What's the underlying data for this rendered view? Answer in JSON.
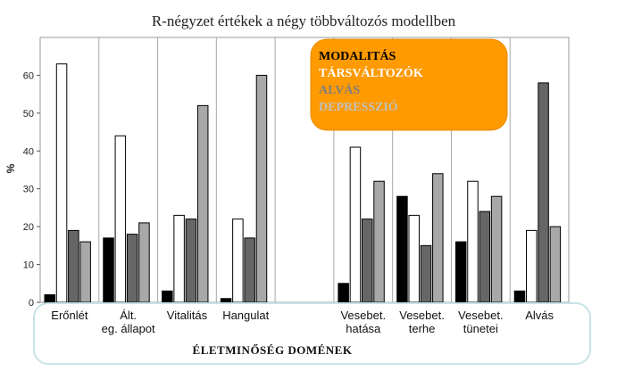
{
  "chart_data": {
    "type": "bar",
    "title": "R-négyzet értékek a négy többváltozós modellben",
    "xlabel": "ÉLETMINŐSÉG DOMÉNEK",
    "ylabel": "%",
    "ylim": [
      0,
      70
    ],
    "yticks": [
      0,
      10,
      20,
      30,
      40,
      50,
      60
    ],
    "grid": true,
    "legend_position": "top-right",
    "categories": [
      [
        "Erőnlét"
      ],
      [
        "Ált.",
        "eg. állapot"
      ],
      [
        "Vitalitás"
      ],
      [
        "Hangulat"
      ],
      [
        ""
      ],
      [
        "Vesebet.",
        "hatása"
      ],
      [
        "Vesebet.",
        "terhe"
      ],
      [
        "Vesebet.",
        "tünetei"
      ],
      [
        "Alvás"
      ]
    ],
    "series": [
      {
        "name": "MODALITÁS",
        "color": "#000000",
        "values": [
          2,
          17,
          3,
          1,
          null,
          5,
          28,
          16,
          3
        ]
      },
      {
        "name": "TÁRSVÁLTOZÓK",
        "color": "#ffffff",
        "values": [
          63,
          44,
          23,
          22,
          null,
          41,
          23,
          32,
          19
        ]
      },
      {
        "name": "ALVÁS",
        "color": "#666666",
        "values": [
          19,
          18,
          22,
          17,
          null,
          22,
          15,
          24,
          58
        ]
      },
      {
        "name": "DEPRESSZIÓ",
        "color": "#a8a8a8",
        "values": [
          16,
          21,
          52,
          60,
          null,
          32,
          34,
          28,
          20
        ]
      }
    ],
    "legend_text_colors": [
      "#000000",
      "#ffffff",
      "#7f7f7f",
      "#c0c0c0"
    ],
    "legend_background": "#ff9a00"
  }
}
